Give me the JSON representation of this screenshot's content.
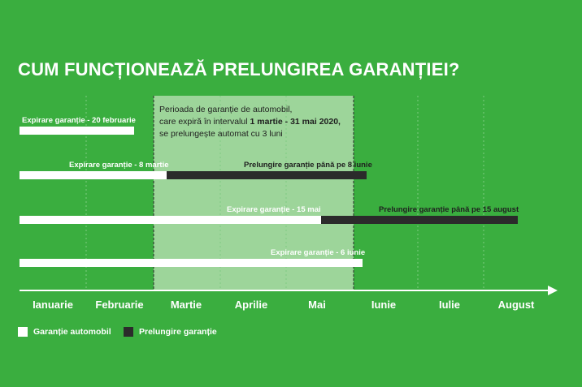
{
  "title": "CUM FUNCȚIONEAZĂ PRELUNGIREA GARANȚIEI?",
  "colors": {
    "background": "#3aae3f",
    "highlight": "#9dd59a",
    "warranty": "#ffffff",
    "extension": "#2b2b2b"
  },
  "info": {
    "line1": "Perioada de garanție de automobil,",
    "line2_pre": "care expiră în intervalul ",
    "line2_bold": "1 martie - 31 mai 2020,",
    "line3": "se prelungește automat cu 3 luni"
  },
  "months": [
    "Ianuarie",
    "Februarie",
    "Martie",
    "Aprilie",
    "Mai",
    "Iunie",
    "Iulie",
    "August"
  ],
  "bars": [
    {
      "label": "Expirare garanție - 20 februarie"
    },
    {
      "label": "Expirare garanție - 8 martie",
      "extension_label": "Prelungire garanție până pe 8 iunie"
    },
    {
      "label": "Expirare garanție - 15 mai",
      "extension_label": "Prelungire garanție până pe 15 august"
    },
    {
      "label": "Expirare garanție - 6 iunie"
    }
  ],
  "legend": {
    "warranty": "Garanție automobil",
    "extension": "Prelungire garanție"
  }
}
